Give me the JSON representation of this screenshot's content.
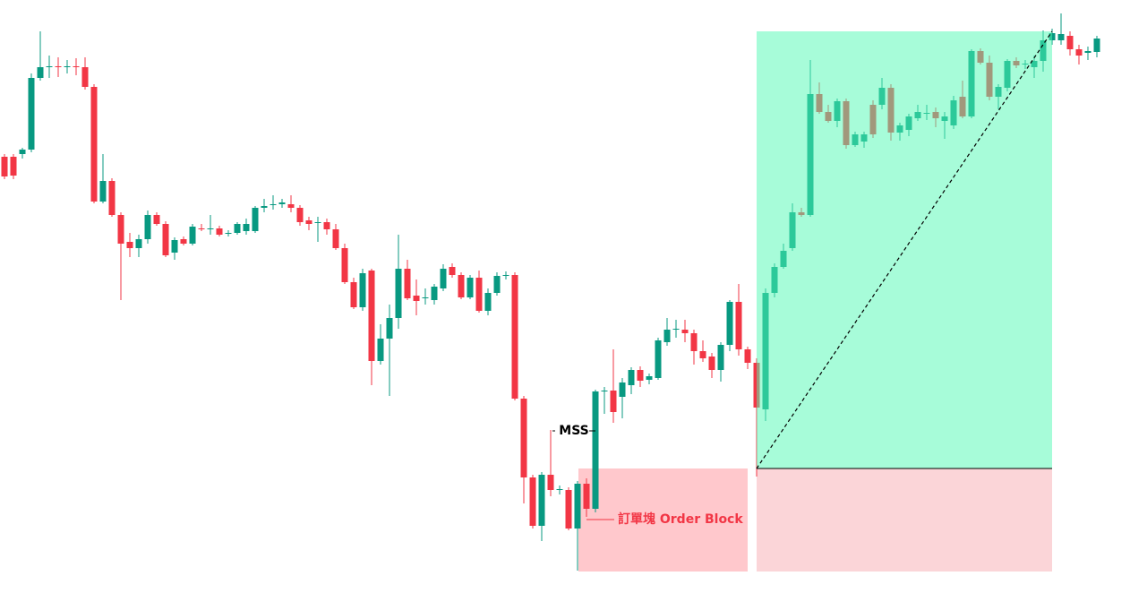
{
  "chart_data": {
    "type": "candlestick",
    "open": [
      487,
      487,
      490,
      495,
      575,
      587,
      588,
      587,
      588,
      587,
      565,
      437,
      460,
      422,
      392,
      385,
      395,
      422,
      412,
      380,
      395,
      390,
      407,
      406,
      407,
      401,
      402,
      404,
      404,
      430,
      433,
      434,
      434,
      430,
      416,
      413,
      414,
      406,
      385,
      347,
      319,
      360,
      259,
      284,
      307,
      362,
      332,
      329,
      327,
      340,
      364,
      355,
      330,
      352,
      315,
      335,
      354,
      355,
      217,
      129,
      75,
      132,
      115,
      115,
      72,
      122,
      94,
      225,
      226,
      219,
      232,
      249,
      238,
      240,
      280,
      294,
      294,
      290,
      270,
      264,
      249,
      277,
      325,
      272,
      257,
      205,
      335,
      364,
      385,
      425,
      422,
      557,
      537,
      527,
      549,
      500,
      504,
      545,
      545,
      564,
      514,
      517,
      530,
      535,
      537,
      527,
      522,
      554,
      532,
      605,
      592,
      554,
      564,
      594,
      590,
      587,
      594,
      617,
      617,
      622,
      607,
      603,
      604
    ],
    "high": [
      490,
      490,
      497,
      580,
      627,
      600,
      598,
      595,
      597,
      598,
      568,
      490,
      463,
      425,
      402,
      400,
      427,
      425,
      415,
      397,
      398,
      412,
      412,
      422,
      410,
      405,
      414,
      418,
      432,
      440,
      444,
      440,
      444,
      433,
      420,
      420,
      418,
      412,
      390,
      352,
      362,
      362,
      300,
      322,
      400,
      372,
      350,
      340,
      345,
      367,
      368,
      358,
      355,
      360,
      340,
      358,
      359,
      358,
      220,
      132,
      135,
      182,
      120,
      118,
      125,
      128,
      227,
      230,
      272,
      240,
      252,
      253,
      245,
      285,
      307,
      305,
      305,
      294,
      282,
      268,
      280,
      327,
      345,
      275,
      262,
      340,
      368,
      390,
      435,
      430,
      595,
      570,
      545,
      552,
      552,
      515,
      515,
      550,
      575,
      568,
      525,
      535,
      545,
      545,
      542,
      537,
      555,
      572,
      607,
      608,
      600,
      568,
      596,
      598,
      595,
      600,
      628,
      630,
      647,
      627,
      612,
      610,
      622
    ],
    "low": [
      462,
      462,
      485,
      492,
      572,
      575,
      576,
      580,
      578,
      562,
      435,
      435,
      420,
      327,
      375,
      375,
      390,
      410,
      375,
      372,
      388,
      388,
      404,
      400,
      398,
      398,
      400,
      400,
      402,
      425,
      428,
      430,
      425,
      410,
      405,
      392,
      400,
      383,
      345,
      317,
      315,
      232,
      255,
      220,
      295,
      327,
      310,
      322,
      322,
      337,
      352,
      328,
      328,
      313,
      310,
      332,
      350,
      215,
      100,
      72,
      58,
      108,
      110,
      70,
      25,
      85,
      90,
      200,
      190,
      195,
      222,
      230,
      233,
      238,
      276,
      285,
      280,
      255,
      258,
      240,
      236,
      270,
      265,
      250,
      130,
      192,
      330,
      362,
      382,
      420,
      420,
      535,
      525,
      520,
      496,
      498,
      497,
      508,
      540,
      505,
      505,
      510,
      527,
      528,
      520,
      507,
      518,
      530,
      530,
      590,
      550,
      540,
      560,
      586,
      585,
      575,
      582,
      612,
      612,
      600,
      590,
      595,
      598
    ],
    "close": [
      465,
      466,
      495,
      575,
      587,
      588,
      587,
      588,
      587,
      565,
      437,
      460,
      422,
      390,
      385,
      395,
      422,
      412,
      377,
      394,
      390,
      409,
      406,
      407,
      400,
      402,
      412,
      412,
      430,
      432,
      434,
      436,
      430,
      414,
      412,
      414,
      406,
      385,
      347,
      319,
      357,
      259,
      284,
      307,
      362,
      329,
      326,
      330,
      342,
      362,
      355,
      330,
      352,
      315,
      335,
      354,
      355,
      217,
      129,
      75,
      132,
      115,
      116,
      72,
      122,
      94,
      225,
      226,
      202,
      235,
      249,
      237,
      242,
      282,
      294,
      295,
      290,
      270,
      262,
      249,
      277,
      325,
      272,
      257,
      207,
      335,
      364,
      382,
      425,
      422,
      557,
      537,
      527,
      549,
      500,
      512,
      512,
      512,
      564,
      514,
      522,
      532,
      537,
      536,
      530,
      532,
      550,
      532,
      605,
      592,
      554,
      565,
      594,
      589,
      591,
      594,
      617,
      625,
      624,
      607,
      600,
      605,
      619
    ],
    "ylim": [
      0,
      662
    ],
    "up_color": "#089981",
    "down_color": "#f23645",
    "annotations": [
      "MSS",
      "訂單塊 Order Block"
    ]
  }
}
